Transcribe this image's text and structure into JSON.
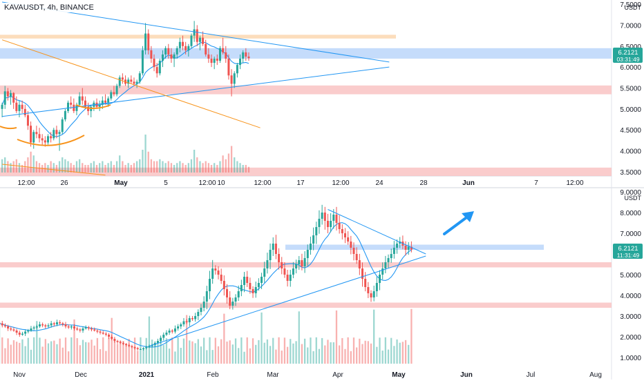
{
  "header": {
    "symbol_label": "KAVAUSDT, 4h, BINANCE"
  },
  "colors": {
    "up": "#26a69a",
    "down": "#ef5350",
    "ma": "#2196f3",
    "trend": "#2196f3",
    "fib": "#f7931a",
    "zone_blue": "#bbd6fa",
    "zone_red": "#f9c3c3",
    "zone_orange": "#fbd7b0",
    "badge": "#26a69a",
    "axis_text": "#131722"
  },
  "chart_data": [
    {
      "type": "candlestick",
      "timeframe": "4h",
      "currency": "USDT",
      "y_ticks": [
        "7.5000",
        "7.0000",
        "6.5000",
        "6.0000",
        "5.5000",
        "5.0000",
        "4.5000",
        "4.0000",
        "3.5000"
      ],
      "ylim": [
        3.4,
        7.6
      ],
      "x_tick_labels": [
        "12:00",
        "26",
        "May",
        "5",
        "12:00",
        "10",
        "12:00",
        "17",
        "12:00",
        "24",
        "28",
        "Jun",
        "7",
        "12:00"
      ],
      "last_price": "6.2121",
      "countdown": "03:31:49",
      "grid": false,
      "zones": [
        {
          "color": "blue",
          "y_range": [
            6.2,
            6.45
          ]
        },
        {
          "color": "orange",
          "y_range": [
            6.68,
            6.77
          ]
        },
        {
          "color": "red",
          "y_range": [
            5.35,
            5.56
          ]
        },
        {
          "color": "red",
          "y_range": [
            3.4,
            3.6
          ]
        }
      ],
      "trendlines": [
        {
          "color": "blue",
          "from": [
            0,
            7.55
          ],
          "to": [
            135,
            6.12
          ]
        },
        {
          "color": "blue",
          "from": [
            0,
            4.82
          ],
          "to": [
            135,
            6.0
          ]
        },
        {
          "color": "orange",
          "from": [
            0,
            6.65
          ],
          "to": [
            90,
            4.55
          ]
        },
        {
          "color": "orange",
          "from": [
            0,
            3.68
          ],
          "to": [
            36,
            3.42
          ]
        }
      ],
      "candles": [
        [
          0,
          5.0,
          5.15,
          4.8,
          5.1
        ],
        [
          1,
          5.1,
          5.55,
          5.0,
          5.42
        ],
        [
          2,
          5.42,
          5.5,
          5.2,
          5.3
        ],
        [
          3,
          5.3,
          5.45,
          5.1,
          5.38
        ],
        [
          4,
          5.38,
          5.4,
          5.0,
          5.15
        ],
        [
          5,
          5.15,
          5.3,
          4.9,
          4.95
        ],
        [
          6,
          4.95,
          5.2,
          4.8,
          5.1
        ],
        [
          7,
          5.1,
          5.2,
          4.9,
          5.0
        ],
        [
          8,
          5.0,
          5.1,
          4.8,
          4.85
        ],
        [
          9,
          4.85,
          4.95,
          4.5,
          4.6
        ],
        [
          10,
          4.6,
          4.7,
          4.1,
          4.2
        ],
        [
          11,
          4.2,
          4.5,
          4.05,
          4.45
        ],
        [
          12,
          4.45,
          4.6,
          4.3,
          4.4
        ],
        [
          13,
          4.4,
          4.55,
          4.2,
          4.3
        ],
        [
          14,
          4.3,
          4.4,
          4.15,
          4.25
        ],
        [
          15,
          4.25,
          4.35,
          4.1,
          4.2
        ],
        [
          16,
          4.2,
          4.4,
          4.15,
          4.35
        ],
        [
          17,
          4.35,
          4.45,
          4.2,
          4.3
        ],
        [
          18,
          4.3,
          4.55,
          4.25,
          4.5
        ],
        [
          19,
          4.5,
          4.6,
          4.3,
          4.4
        ],
        [
          20,
          4.4,
          4.5,
          4.0,
          4.45
        ],
        [
          21,
          4.45,
          4.8,
          4.4,
          4.75
        ],
        [
          22,
          4.75,
          5.0,
          4.7,
          4.95
        ],
        [
          23,
          4.95,
          5.2,
          4.9,
          5.15
        ],
        [
          24,
          5.15,
          5.3,
          5.0,
          5.1
        ],
        [
          25,
          5.1,
          5.25,
          4.9,
          4.95
        ],
        [
          26,
          4.95,
          5.15,
          4.85,
          5.1
        ],
        [
          27,
          5.1,
          5.4,
          5.05,
          5.3
        ],
        [
          28,
          5.3,
          5.5,
          5.1,
          5.2
        ],
        [
          29,
          5.2,
          5.3,
          5.0,
          5.05
        ],
        [
          30,
          5.05,
          5.15,
          4.85,
          4.95
        ],
        [
          31,
          4.95,
          5.1,
          4.8,
          5.05
        ],
        [
          32,
          5.05,
          5.2,
          4.95,
          5.15
        ],
        [
          33,
          5.15,
          5.25,
          5.0,
          5.05
        ],
        [
          34,
          5.05,
          5.2,
          4.95,
          5.1
        ],
        [
          35,
          5.1,
          5.3,
          5.0,
          5.2
        ],
        [
          36,
          5.2,
          5.35,
          5.1,
          5.15
        ],
        [
          37,
          5.15,
          5.3,
          5.05,
          5.25
        ],
        [
          38,
          5.25,
          5.45,
          5.2,
          5.4
        ],
        [
          39,
          5.4,
          5.55,
          5.3,
          5.35
        ],
        [
          40,
          5.35,
          5.6,
          5.3,
          5.55
        ],
        [
          41,
          5.55,
          5.8,
          5.5,
          5.75
        ],
        [
          42,
          5.75,
          5.85,
          5.6,
          5.7
        ],
        [
          43,
          5.7,
          5.8,
          5.55,
          5.6
        ],
        [
          44,
          5.6,
          5.75,
          5.5,
          5.7
        ],
        [
          45,
          5.7,
          5.8,
          5.6,
          5.65
        ],
        [
          46,
          5.65,
          5.75,
          5.55,
          5.6
        ],
        [
          47,
          5.6,
          5.7,
          5.5,
          5.65
        ],
        [
          48,
          5.65,
          5.9,
          5.6,
          5.85
        ],
        [
          49,
          5.85,
          6.5,
          5.8,
          6.4
        ],
        [
          50,
          6.4,
          7.05,
          6.3,
          6.8
        ],
        [
          51,
          6.8,
          6.9,
          6.3,
          6.4
        ],
        [
          52,
          6.4,
          6.5,
          6.1,
          6.2
        ],
        [
          53,
          6.2,
          6.3,
          5.9,
          6.0
        ],
        [
          54,
          6.0,
          6.1,
          5.75,
          5.85
        ],
        [
          55,
          5.85,
          6.2,
          5.8,
          6.15
        ],
        [
          56,
          6.15,
          6.4,
          6.0,
          6.3
        ],
        [
          57,
          6.3,
          6.5,
          6.2,
          6.45
        ],
        [
          58,
          6.45,
          6.55,
          6.2,
          6.3
        ],
        [
          59,
          6.3,
          6.45,
          6.1,
          6.2
        ],
        [
          60,
          6.2,
          6.35,
          6.0,
          6.3
        ],
        [
          61,
          6.3,
          6.5,
          6.2,
          6.45
        ],
        [
          62,
          6.45,
          6.7,
          6.35,
          6.6
        ],
        [
          63,
          6.6,
          6.75,
          6.4,
          6.5
        ],
        [
          64,
          6.5,
          6.6,
          6.3,
          6.4
        ],
        [
          65,
          6.4,
          6.55,
          6.25,
          6.5
        ],
        [
          66,
          6.5,
          6.8,
          6.45,
          6.75
        ],
        [
          67,
          6.75,
          7.1,
          6.6,
          6.9
        ],
        [
          68,
          6.9,
          7.0,
          6.5,
          6.6
        ],
        [
          69,
          6.6,
          6.75,
          6.4,
          6.7
        ],
        [
          70,
          6.7,
          6.85,
          6.5,
          6.55
        ],
        [
          71,
          6.55,
          6.65,
          6.25,
          6.3
        ],
        [
          72,
          6.3,
          6.45,
          6.1,
          6.2
        ],
        [
          73,
          6.2,
          6.3,
          6.0,
          6.1
        ],
        [
          74,
          6.1,
          6.25,
          5.95,
          6.2
        ],
        [
          75,
          6.2,
          6.3,
          6.05,
          6.15
        ],
        [
          76,
          6.15,
          6.5,
          6.1,
          6.45
        ],
        [
          77,
          6.45,
          6.7,
          6.3,
          6.35
        ],
        [
          78,
          6.35,
          6.5,
          6.1,
          6.2
        ],
        [
          79,
          6.2,
          6.3,
          5.7,
          5.8
        ],
        [
          80,
          5.8,
          5.95,
          5.3,
          5.6
        ],
        [
          81,
          5.6,
          5.9,
          5.5,
          5.85
        ],
        [
          82,
          5.85,
          6.1,
          5.75,
          6.05
        ],
        [
          83,
          6.05,
          6.3,
          5.95,
          6.2
        ],
        [
          84,
          6.2,
          6.4,
          6.1,
          6.35
        ],
        [
          85,
          6.35,
          6.45,
          6.15,
          6.25
        ],
        [
          86,
          6.25,
          6.35,
          6.15,
          6.21
        ]
      ],
      "volume": [
        0.35,
        0.4,
        0.3,
        0.25,
        0.3,
        0.35,
        0.25,
        0.2,
        0.3,
        0.4,
        0.55,
        0.45,
        0.3,
        0.25,
        0.2,
        0.25,
        0.2,
        0.3,
        0.25,
        0.2,
        0.3,
        0.4,
        0.35,
        0.3,
        0.25,
        0.2,
        0.3,
        0.35,
        0.25,
        0.2,
        0.2,
        0.25,
        0.3,
        0.2,
        0.25,
        0.3,
        0.2,
        0.25,
        0.3,
        0.2,
        0.3,
        0.45,
        0.3,
        0.2,
        0.25,
        0.2,
        0.25,
        0.3,
        0.35,
        0.6,
        1.0,
        0.55,
        0.35,
        0.3,
        0.3,
        0.35,
        0.3,
        0.25,
        0.3,
        0.25,
        0.2,
        0.25,
        0.3,
        0.25,
        0.2,
        0.25,
        0.35,
        0.6,
        0.4,
        0.3,
        0.25,
        0.3,
        0.25,
        0.2,
        0.25,
        0.2,
        0.3,
        0.45,
        0.35,
        0.5,
        0.7,
        0.4,
        0.3,
        0.25,
        0.2,
        0.2,
        0.15
      ]
    },
    {
      "type": "candlestick",
      "timeframe": "1D",
      "currency": "USDT",
      "y_ticks": [
        "9.0000",
        "8.0000",
        "7.0000",
        "6.0000",
        "5.0000",
        "4.0000",
        "3.0000",
        "2.0000",
        "1.0000"
      ],
      "ylim": [
        0.6,
        9.2
      ],
      "x_tick_labels": [
        "Nov",
        "Dec",
        "2021",
        "Feb",
        "Mar",
        "Apr",
        "May",
        "Jun",
        "Jul",
        "Aug"
      ],
      "last_price": "6.2121",
      "countdown": "11:31:49",
      "grid": false,
      "zones": [
        {
          "color": "blue",
          "y_range": [
            6.2,
            6.45
          ]
        },
        {
          "color": "red",
          "y_range": [
            5.35,
            5.6
          ]
        },
        {
          "color": "red",
          "y_range": [
            3.4,
            3.65
          ]
        }
      ],
      "trendlines": [
        {
          "color": "blue",
          "from": [
            52,
            1.55
          ],
          "to": [
            148,
            5.9
          ]
        },
        {
          "color": "blue",
          "from": [
            114,
            8.15
          ],
          "to": [
            148,
            6.0
          ]
        }
      ],
      "closes": [
        2.65,
        2.55,
        2.5,
        2.4,
        2.35,
        2.3,
        2.2,
        2.1,
        2.15,
        2.25,
        2.3,
        2.4,
        2.45,
        2.5,
        2.6,
        2.55,
        2.5,
        2.55,
        2.65,
        2.6,
        2.7,
        2.65,
        2.6,
        2.5,
        2.45,
        2.5,
        2.4,
        2.35,
        2.3,
        2.4,
        2.45,
        2.4,
        2.35,
        2.3,
        2.25,
        2.2,
        2.15,
        2.1,
        2.0,
        1.9,
        1.8,
        1.75,
        1.7,
        1.65,
        1.6,
        1.55,
        1.5,
        1.45,
        1.4,
        1.4,
        1.45,
        1.5,
        1.55,
        1.6,
        1.7,
        1.8,
        1.95,
        2.1,
        2.2,
        2.3,
        2.25,
        2.4,
        2.5,
        2.6,
        2.75,
        2.7,
        2.9,
        2.85,
        3.0,
        3.2,
        3.4,
        3.7,
        4.2,
        4.8,
        5.3,
        5.2,
        5.0,
        4.7,
        4.3,
        3.9,
        3.5,
        3.7,
        3.9,
        4.2,
        4.5,
        4.9,
        4.6,
        4.3,
        4.1,
        4.4,
        4.6,
        4.9,
        5.3,
        5.7,
        6.2,
        6.5,
        6.0,
        5.6,
        5.3,
        5.0,
        4.7,
        5.0,
        5.3,
        5.5,
        5.7,
        5.4,
        5.8,
        6.2,
        6.5,
        6.9,
        7.3,
        7.7,
        8.0,
        7.6,
        7.3,
        7.6,
        7.9,
        7.5,
        7.2,
        7.0,
        6.8,
        6.6,
        6.3,
        6.0,
        5.7,
        5.3,
        4.8,
        4.4,
        4.1,
        3.9,
        4.2,
        4.6,
        5.0,
        5.3,
        5.6,
        5.8,
        6.0,
        6.3,
        6.5,
        6.6,
        6.4,
        6.2,
        6.35,
        6.21
      ]
    }
  ]
}
